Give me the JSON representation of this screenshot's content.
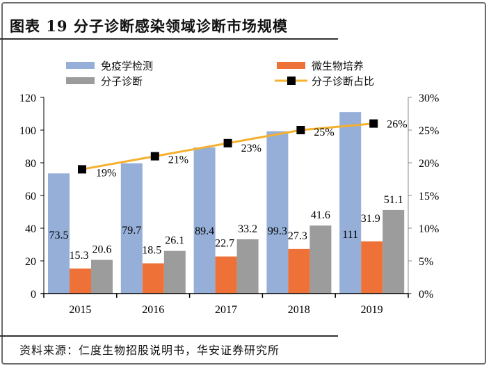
{
  "header": {
    "title": "图表 19 分子诊断感染领域诊断市场规模"
  },
  "footer": {
    "source": "资料来源：仁度生物招股说明书，华安证券研究所"
  },
  "chart_data": {
    "type": "bar",
    "title": "图表 19 分子诊断感染领域诊断市场规模",
    "xlabel": "",
    "ylabel": "",
    "categories": [
      "2015",
      "2016",
      "2017",
      "2018",
      "2019"
    ],
    "series": [
      {
        "name": "免疫学检测",
        "type": "bar",
        "axis": "left",
        "color": "#96afd8",
        "values": [
          73.5,
          79.7,
          89.4,
          99.3,
          111
        ],
        "labels": [
          "73.5",
          "79.7",
          "89.4",
          "99.3",
          "111"
        ]
      },
      {
        "name": "微生物培养",
        "type": "bar",
        "axis": "left",
        "color": "#ee7137",
        "values": [
          15.3,
          18.5,
          22.7,
          27.3,
          31.9
        ],
        "labels": [
          "15.3",
          "18.5",
          "22.7",
          "27.3",
          "31.9"
        ]
      },
      {
        "name": "分子诊断",
        "type": "bar",
        "axis": "left",
        "color": "#9c9c9c",
        "values": [
          20.6,
          26.1,
          33.2,
          41.6,
          51.1
        ],
        "labels": [
          "20.6",
          "26.1",
          "33.2",
          "41.6",
          "51.1"
        ]
      },
      {
        "name": "分子诊断占比",
        "type": "line",
        "axis": "right",
        "color": "#f5b02e",
        "marker_color": "#000000",
        "values": [
          19,
          21,
          23,
          25,
          26
        ],
        "labels": [
          "19%",
          "21%",
          "23%",
          "25%",
          "26%"
        ]
      }
    ],
    "y_left": {
      "ylim": [
        0,
        120
      ],
      "ticks": [
        0,
        20,
        40,
        60,
        80,
        100,
        120
      ],
      "tick_labels": [
        "0",
        "20",
        "40",
        "60",
        "80",
        "100",
        "120"
      ]
    },
    "y_right": {
      "ylim": [
        0,
        30
      ],
      "ticks": [
        0,
        5,
        10,
        15,
        20,
        25,
        30
      ],
      "tick_labels": [
        "0%",
        "5%",
        "10%",
        "15%",
        "20%",
        "25%",
        "30%"
      ]
    },
    "legend": {
      "position": "top",
      "columns": 2,
      "order": [
        "免疫学检测",
        "微生物培养",
        "分子诊断",
        "分子诊断占比"
      ]
    },
    "grid": false
  }
}
